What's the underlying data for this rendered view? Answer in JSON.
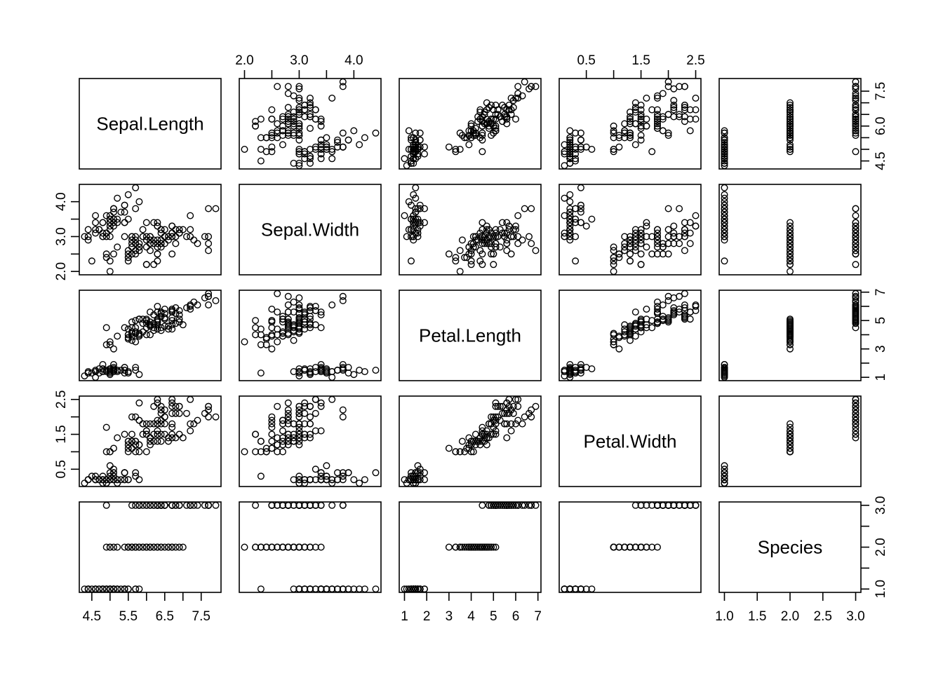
{
  "colors": {
    "background": "#ffffff",
    "foreground": "#000000"
  },
  "chart_data": {
    "type": "scatter",
    "subtype": "pairs-scatterplot-matrix",
    "title": "",
    "point_style": {
      "shape": "open-circle",
      "color": "#000000"
    },
    "grid": false,
    "variables": [
      "Sepal.Length",
      "Sepal.Width",
      "Petal.Length",
      "Petal.Width",
      "Species"
    ],
    "diag_labels": [
      "Sepal.Length",
      "Sepal.Width",
      "Petal.Length",
      "Petal.Width",
      "Species"
    ],
    "data": {
      "Sepal.Length": [
        5.1,
        4.9,
        4.7,
        4.6,
        5.0,
        5.4,
        4.6,
        5.0,
        4.4,
        4.9,
        5.4,
        4.8,
        4.8,
        4.3,
        5.8,
        5.7,
        5.4,
        5.1,
        5.7,
        5.1,
        5.4,
        5.1,
        4.6,
        5.1,
        4.8,
        5.0,
        5.0,
        5.2,
        5.2,
        4.7,
        4.8,
        5.4,
        5.2,
        5.5,
        4.9,
        5.0,
        5.5,
        4.9,
        4.4,
        5.1,
        5.0,
        4.5,
        4.4,
        5.0,
        5.1,
        4.8,
        5.1,
        4.6,
        5.3,
        5.0,
        7.0,
        6.4,
        6.9,
        5.5,
        6.5,
        5.7,
        6.3,
        4.9,
        6.6,
        5.2,
        5.0,
        5.9,
        6.0,
        6.1,
        5.6,
        6.7,
        5.6,
        5.8,
        6.2,
        5.6,
        5.9,
        6.1,
        6.3,
        6.1,
        6.4,
        6.6,
        6.8,
        6.7,
        6.0,
        5.7,
        5.5,
        5.5,
        5.8,
        6.0,
        5.4,
        6.0,
        6.7,
        6.3,
        5.6,
        5.5,
        5.5,
        6.1,
        5.8,
        5.0,
        5.6,
        5.7,
        5.7,
        6.2,
        5.1,
        5.7,
        6.3,
        5.8,
        7.1,
        6.3,
        6.5,
        7.6,
        4.9,
        7.3,
        6.7,
        7.2,
        6.5,
        6.4,
        6.8,
        5.7,
        5.8,
        6.4,
        6.5,
        7.7,
        7.7,
        6.0,
        6.9,
        5.6,
        7.7,
        6.3,
        6.7,
        7.2,
        6.2,
        6.1,
        6.4,
        7.2,
        7.4,
        7.9,
        6.4,
        6.3,
        6.1,
        7.7,
        6.3,
        6.4,
        6.0,
        6.9,
        6.7,
        6.9,
        5.8,
        6.8,
        6.7,
        6.7,
        6.3,
        6.5,
        6.2,
        5.9
      ],
      "Sepal.Width": [
        3.5,
        3.0,
        3.2,
        3.1,
        3.6,
        3.9,
        3.4,
        3.4,
        2.9,
        3.1,
        3.7,
        3.4,
        3.0,
        3.0,
        4.0,
        4.4,
        3.9,
        3.5,
        3.8,
        3.8,
        3.4,
        3.7,
        3.6,
        3.3,
        3.4,
        3.0,
        3.4,
        3.5,
        3.4,
        3.2,
        3.1,
        3.4,
        4.1,
        4.2,
        3.1,
        3.2,
        3.5,
        3.6,
        3.0,
        3.4,
        3.5,
        2.3,
        3.2,
        3.5,
        3.8,
        3.0,
        3.8,
        3.2,
        3.7,
        3.3,
        3.2,
        3.2,
        3.1,
        2.3,
        2.8,
        2.8,
        3.3,
        2.4,
        2.9,
        2.7,
        2.0,
        3.0,
        2.2,
        2.9,
        2.9,
        3.1,
        3.0,
        2.7,
        2.2,
        2.5,
        3.2,
        2.8,
        2.5,
        2.8,
        2.9,
        3.0,
        2.8,
        3.0,
        2.9,
        2.6,
        2.4,
        2.4,
        2.7,
        2.7,
        3.0,
        3.4,
        3.1,
        2.3,
        3.0,
        2.5,
        2.6,
        3.0,
        2.6,
        2.3,
        2.7,
        3.0,
        2.9,
        2.9,
        2.5,
        2.8,
        3.3,
        2.7,
        3.0,
        2.9,
        3.0,
        3.0,
        2.5,
        2.9,
        2.5,
        3.6,
        3.2,
        2.7,
        3.0,
        2.5,
        2.8,
        3.2,
        3.0,
        3.8,
        2.6,
        2.2,
        3.2,
        2.8,
        2.8,
        2.7,
        3.3,
        3.2,
        2.8,
        3.0,
        2.8,
        3.0,
        2.8,
        3.8,
        2.8,
        2.8,
        2.6,
        3.0,
        3.4,
        3.1,
        3.0,
        3.1,
        3.1,
        3.1,
        2.7,
        3.2,
        3.3,
        3.0,
        2.5,
        3.0,
        3.4,
        3.0
      ],
      "Petal.Length": [
        1.4,
        1.4,
        1.3,
        1.5,
        1.4,
        1.7,
        1.4,
        1.5,
        1.4,
        1.5,
        1.5,
        1.6,
        1.4,
        1.1,
        1.2,
        1.5,
        1.3,
        1.4,
        1.7,
        1.5,
        1.7,
        1.5,
        1.0,
        1.7,
        1.9,
        1.6,
        1.6,
        1.5,
        1.4,
        1.6,
        1.6,
        1.5,
        1.5,
        1.4,
        1.5,
        1.2,
        1.3,
        1.4,
        1.3,
        1.5,
        1.3,
        1.3,
        1.3,
        1.6,
        1.9,
        1.4,
        1.6,
        1.4,
        1.5,
        1.4,
        4.7,
        4.5,
        4.9,
        4.0,
        4.6,
        4.5,
        4.7,
        3.3,
        4.6,
        3.9,
        3.5,
        4.2,
        4.0,
        4.7,
        3.6,
        4.4,
        4.5,
        4.1,
        4.5,
        3.9,
        4.8,
        4.0,
        4.9,
        4.7,
        4.3,
        4.4,
        4.8,
        5.0,
        4.5,
        3.5,
        3.8,
        3.7,
        3.9,
        5.1,
        4.5,
        4.5,
        4.7,
        4.4,
        4.1,
        4.0,
        4.4,
        4.6,
        4.0,
        3.3,
        4.2,
        4.2,
        4.2,
        4.3,
        3.0,
        4.1,
        6.0,
        5.1,
        5.9,
        5.6,
        5.8,
        6.6,
        4.5,
        6.3,
        5.8,
        6.1,
        5.1,
        5.3,
        5.5,
        5.0,
        5.1,
        5.3,
        5.5,
        6.7,
        6.9,
        5.0,
        5.7,
        4.9,
        6.7,
        4.9,
        5.7,
        6.0,
        4.8,
        4.9,
        5.6,
        5.8,
        6.1,
        6.4,
        5.6,
        5.1,
        5.6,
        6.1,
        5.6,
        5.5,
        4.8,
        5.4,
        5.6,
        5.1,
        5.1,
        5.9,
        5.7,
        5.2,
        5.0,
        5.2,
        5.4,
        5.1
      ],
      "Petal.Width": [
        0.2,
        0.2,
        0.2,
        0.2,
        0.2,
        0.4,
        0.3,
        0.2,
        0.2,
        0.1,
        0.2,
        0.2,
        0.1,
        0.1,
        0.2,
        0.4,
        0.4,
        0.3,
        0.3,
        0.3,
        0.2,
        0.4,
        0.2,
        0.5,
        0.2,
        0.2,
        0.4,
        0.2,
        0.2,
        0.2,
        0.2,
        0.4,
        0.1,
        0.2,
        0.2,
        0.2,
        0.2,
        0.1,
        0.2,
        0.2,
        0.3,
        0.3,
        0.2,
        0.6,
        0.4,
        0.3,
        0.2,
        0.2,
        0.2,
        0.2,
        1.4,
        1.5,
        1.5,
        1.3,
        1.5,
        1.3,
        1.6,
        1.0,
        1.3,
        1.4,
        1.0,
        1.5,
        1.0,
        1.4,
        1.3,
        1.4,
        1.5,
        1.0,
        1.5,
        1.1,
        1.8,
        1.3,
        1.5,
        1.2,
        1.3,
        1.4,
        1.4,
        1.7,
        1.5,
        1.0,
        1.1,
        1.0,
        1.2,
        1.6,
        1.5,
        1.6,
        1.5,
        1.3,
        1.3,
        1.3,
        1.2,
        1.4,
        1.2,
        1.0,
        1.3,
        1.2,
        1.3,
        1.3,
        1.1,
        1.3,
        2.5,
        1.9,
        2.1,
        1.8,
        2.2,
        2.1,
        1.7,
        1.8,
        1.8,
        2.5,
        2.0,
        1.9,
        2.1,
        2.0,
        2.4,
        2.3,
        1.8,
        2.2,
        2.3,
        1.5,
        2.3,
        2.0,
        2.0,
        1.8,
        2.1,
        1.8,
        1.8,
        1.8,
        2.1,
        1.6,
        1.9,
        2.0,
        2.2,
        1.5,
        1.4,
        2.3,
        2.4,
        1.8,
        1.8,
        2.1,
        2.4,
        2.3,
        1.9,
        2.3,
        2.5,
        2.3,
        1.9,
        2.0,
        2.3,
        1.8
      ],
      "Species": [
        1,
        1,
        1,
        1,
        1,
        1,
        1,
        1,
        1,
        1,
        1,
        1,
        1,
        1,
        1,
        1,
        1,
        1,
        1,
        1,
        1,
        1,
        1,
        1,
        1,
        1,
        1,
        1,
        1,
        1,
        1,
        1,
        1,
        1,
        1,
        1,
        1,
        1,
        1,
        1,
        1,
        1,
        1,
        1,
        1,
        1,
        1,
        1,
        1,
        1,
        2,
        2,
        2,
        2,
        2,
        2,
        2,
        2,
        2,
        2,
        2,
        2,
        2,
        2,
        2,
        2,
        2,
        2,
        2,
        2,
        2,
        2,
        2,
        2,
        2,
        2,
        2,
        2,
        2,
        2,
        2,
        2,
        2,
        2,
        2,
        2,
        2,
        2,
        2,
        2,
        2,
        2,
        2,
        2,
        2,
        2,
        2,
        2,
        2,
        2,
        3,
        3,
        3,
        3,
        3,
        3,
        3,
        3,
        3,
        3,
        3,
        3,
        3,
        3,
        3,
        3,
        3,
        3,
        3,
        3,
        3,
        3,
        3,
        3,
        3,
        3,
        3,
        3,
        3,
        3,
        3,
        3,
        3,
        3,
        3,
        3,
        3,
        3,
        3,
        3,
        3,
        3,
        3,
        3,
        3,
        3,
        3,
        3,
        3,
        3
      ]
    },
    "axes": {
      "top": [
        {
          "index": 1,
          "variable": "Sepal.Width",
          "tick_values": [
            2.0,
            2.5,
            3.0,
            3.5,
            4.0
          ],
          "tick_labels": [
            "2.0",
            "",
            "3.0",
            "",
            "4.0"
          ]
        },
        {
          "index": 3,
          "variable": "Petal.Width",
          "tick_values": [
            0.5,
            1.0,
            1.5,
            2.0,
            2.5
          ],
          "tick_labels": [
            "0.5",
            "",
            "1.5",
            "",
            "2.5"
          ]
        }
      ],
      "bottom": [
        {
          "index": 0,
          "variable": "Sepal.Length",
          "tick_values": [
            4.5,
            5.0,
            5.5,
            6.0,
            6.5,
            7.0,
            7.5
          ],
          "tick_labels": [
            "4.5",
            "",
            "5.5",
            "",
            "6.5",
            "",
            "7.5"
          ]
        },
        {
          "index": 2,
          "variable": "Petal.Length",
          "tick_values": [
            1,
            2,
            3,
            4,
            5,
            6,
            7
          ],
          "tick_labels": [
            "1",
            "2",
            "3",
            "4",
            "5",
            "6",
            "7"
          ]
        },
        {
          "index": 4,
          "variable": "Species",
          "tick_values": [
            1.0,
            1.5,
            2.0,
            2.5,
            3.0
          ],
          "tick_labels": [
            "1.0",
            "1.5",
            "2.0",
            "2.5",
            "3.0"
          ]
        }
      ],
      "left": [
        {
          "index": 1,
          "variable": "Sepal.Width",
          "tick_values": [
            2.0,
            2.5,
            3.0,
            3.5,
            4.0
          ],
          "tick_labels": [
            "2.0",
            "",
            "3.0",
            "",
            "4.0"
          ]
        },
        {
          "index": 3,
          "variable": "Petal.Width",
          "tick_values": [
            0.5,
            1.0,
            1.5,
            2.0,
            2.5
          ],
          "tick_labels": [
            "0.5",
            "",
            "1.5",
            "",
            "2.5"
          ]
        }
      ],
      "right": [
        {
          "index": 0,
          "variable": "Sepal.Length",
          "tick_values": [
            4.5,
            5.0,
            5.5,
            6.0,
            6.5,
            7.0,
            7.5
          ],
          "tick_labels": [
            "4.5",
            "",
            "",
            "6.0",
            "",
            "",
            "7.5"
          ]
        },
        {
          "index": 2,
          "variable": "Petal.Length",
          "tick_values": [
            1,
            2,
            3,
            4,
            5,
            6,
            7
          ],
          "tick_labels": [
            "1",
            "",
            "3",
            "",
            "5",
            "",
            "7"
          ]
        },
        {
          "index": 4,
          "variable": "Species",
          "tick_values": [
            1.0,
            1.5,
            2.0,
            2.5,
            3.0
          ],
          "tick_labels": [
            "1.0",
            "",
            "2.0",
            "",
            "3.0"
          ]
        }
      ]
    }
  }
}
